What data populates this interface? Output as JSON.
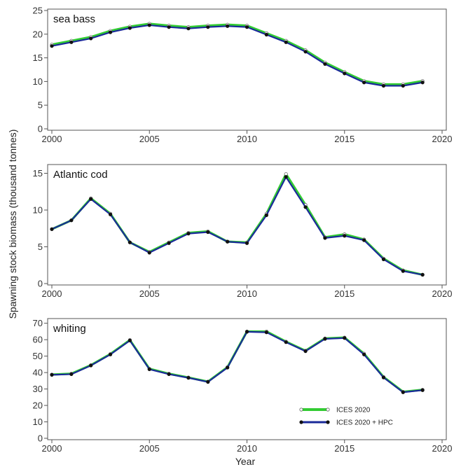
{
  "chart_data": {
    "type": "line",
    "ylabel": "Spawning stock biomass (thousand tonnes)",
    "xlabel": "Year",
    "x": [
      2000,
      2001,
      2002,
      2003,
      2004,
      2005,
      2006,
      2007,
      2008,
      2009,
      2010,
      2011,
      2012,
      2013,
      2014,
      2015,
      2016,
      2017,
      2018,
      2019
    ],
    "xlim": [
      2000,
      2020
    ],
    "xticks": [
      2000,
      2005,
      2010,
      2015,
      2020
    ],
    "legend": {
      "placement": "bottom-right of whiting panel",
      "entries": [
        {
          "name": "ICES 2020",
          "color": "#33cc33",
          "marker": "open-circle"
        },
        {
          "name": "ICES 2020 + HPC",
          "color": "#1a2a99",
          "marker": "filled-circle"
        }
      ]
    },
    "panels": [
      {
        "title": "sea bass",
        "ylim": [
          0,
          25
        ],
        "yticks": [
          0,
          5,
          10,
          15,
          20,
          25
        ],
        "series": [
          {
            "name": "ICES 2020",
            "values": [
              17.8,
              18.6,
              19.4,
              20.7,
              21.6,
              22.2,
              21.8,
              21.5,
              21.8,
              22.0,
              21.8,
              20.2,
              18.6,
              16.6,
              14.0,
              12.0,
              10.1,
              9.4,
              9.4,
              10.1
            ]
          },
          {
            "name": "ICES 2020 + HPC",
            "values": [
              17.5,
              18.3,
              19.1,
              20.4,
              21.3,
              21.9,
              21.5,
              21.2,
              21.5,
              21.7,
              21.5,
              19.9,
              18.3,
              16.3,
              13.7,
              11.7,
              9.8,
              9.1,
              9.1,
              9.8
            ]
          }
        ]
      },
      {
        "title": "Atlantic cod",
        "ylim": [
          0,
          16
        ],
        "yticks": [
          0,
          5,
          10,
          15
        ],
        "series": [
          {
            "name": "ICES 2020",
            "values": [
              7.4,
              8.6,
              11.6,
              9.5,
              5.6,
              4.3,
              5.6,
              6.9,
              7.1,
              5.7,
              5.6,
              9.5,
              14.9,
              10.7,
              6.3,
              6.7,
              6.0,
              3.4,
              1.8,
              1.2
            ]
          },
          {
            "name": "ICES 2020 + HPC",
            "values": [
              7.4,
              8.6,
              11.5,
              9.4,
              5.6,
              4.2,
              5.5,
              6.8,
              7.0,
              5.7,
              5.5,
              9.3,
              14.5,
              10.4,
              6.2,
              6.5,
              5.9,
              3.3,
              1.7,
              1.2
            ]
          }
        ]
      },
      {
        "title": "whiting",
        "ylim": [
          0,
          72
        ],
        "yticks": [
          0,
          10,
          20,
          30,
          40,
          50,
          60,
          70
        ],
        "series": [
          {
            "name": "ICES 2020",
            "values": [
              38.8,
              39.3,
              44.5,
              51.3,
              59.8,
              42.3,
              39.3,
              37.0,
              34.5,
              43.3,
              65.0,
              65.0,
              58.8,
              53.3,
              60.8,
              61.3,
              51.5,
              37.3,
              28.3,
              29.5
            ]
          },
          {
            "name": "ICES 2020 + HPC",
            "values": [
              38.6,
              39.0,
              44.3,
              51.0,
              59.5,
              42.0,
              39.0,
              36.8,
              34.3,
              43.0,
              64.8,
              64.5,
              58.5,
              53.0,
              60.5,
              61.0,
              51.0,
              37.0,
              28.0,
              29.3
            ]
          }
        ]
      }
    ]
  }
}
